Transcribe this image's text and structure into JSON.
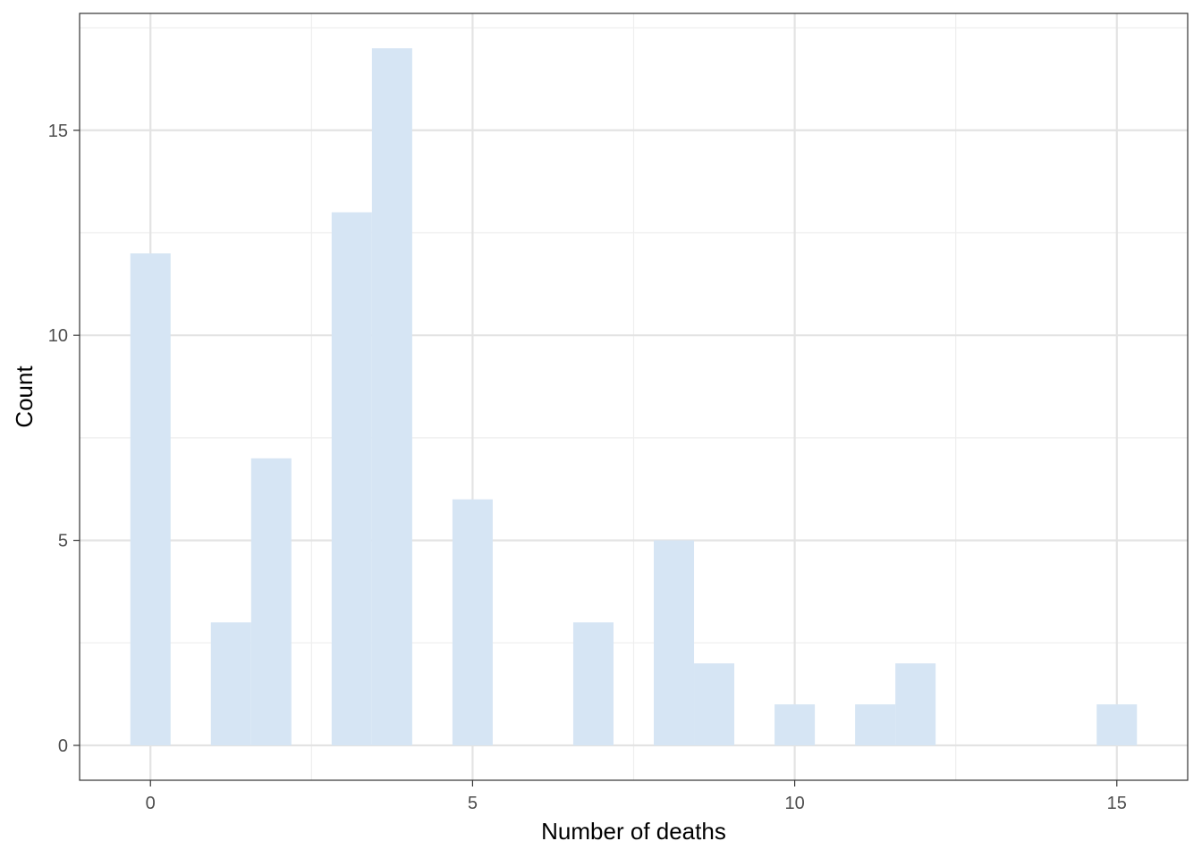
{
  "chart_data": {
    "type": "bar",
    "subtype": "histogram",
    "title": "",
    "xlabel": "Number of deaths",
    "ylabel": "Count",
    "xlim": [
      -1.1,
      16.1
    ],
    "ylim": [
      -0.85,
      17.85
    ],
    "x_ticks": [
      0,
      5,
      10,
      15
    ],
    "y_ticks": [
      0,
      5,
      10,
      15
    ],
    "grid": true,
    "bin_width": 0.625,
    "bins": [
      {
        "center": 0.0,
        "count": 12
      },
      {
        "center": 1.25,
        "count": 3
      },
      {
        "center": 1.875,
        "count": 7
      },
      {
        "center": 3.125,
        "count": 13
      },
      {
        "center": 3.75,
        "count": 17
      },
      {
        "center": 5.0,
        "count": 6
      },
      {
        "center": 6.875,
        "count": 3
      },
      {
        "center": 8.125,
        "count": 5
      },
      {
        "center": 8.75,
        "count": 2
      },
      {
        "center": 10.0,
        "count": 1
      },
      {
        "center": 11.25,
        "count": 1
      },
      {
        "center": 11.875,
        "count": 2
      },
      {
        "center": 15.0,
        "count": 1
      }
    ],
    "colors": {
      "bar_fill": "#d6e5f4",
      "grid_major": "#e3e3e3",
      "grid_minor": "#eeeeee",
      "panel_border": "#333333",
      "tick_mark": "#333333"
    }
  }
}
